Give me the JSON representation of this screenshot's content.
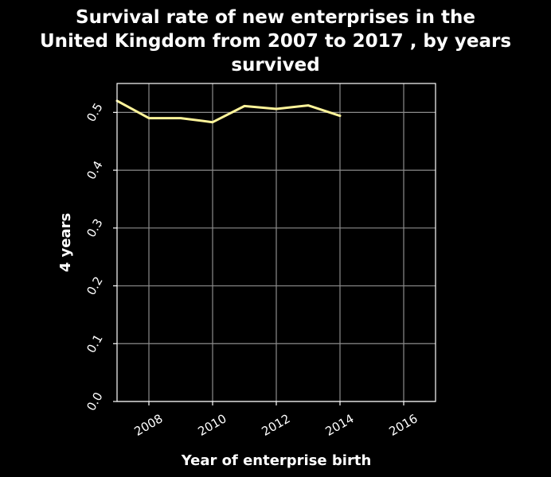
{
  "chart_data": {
    "type": "line",
    "title_lines": [
      "Survival rate of new enterprises in the",
      "United Kingdom from 2007 to 2017 , by years",
      "survived"
    ],
    "xlabel": "Year of enterprise birth",
    "ylabel": "4 years",
    "xlim": [
      2007,
      2017
    ],
    "ylim": [
      0,
      0.55
    ],
    "xticks": [
      2008,
      2010,
      2012,
      2014,
      2016
    ],
    "yticks": [
      0.0,
      0.1,
      0.2,
      0.3,
      0.4,
      0.5
    ],
    "xtick_labels": [
      "2008",
      "2010",
      "2012",
      "2014",
      "2016"
    ],
    "ytick_labels": [
      "0.0",
      "0.1",
      "0.2",
      "0.3",
      "0.4",
      "0.5"
    ],
    "grid": true,
    "series": [
      {
        "x": [
          2007,
          2008,
          2009,
          2010,
          2011,
          2012,
          2013,
          2014
        ],
        "values": [
          0.52,
          0.49,
          0.49,
          0.483,
          0.511,
          0.506,
          0.512,
          0.494
        ],
        "color": "#fff49a"
      }
    ]
  }
}
